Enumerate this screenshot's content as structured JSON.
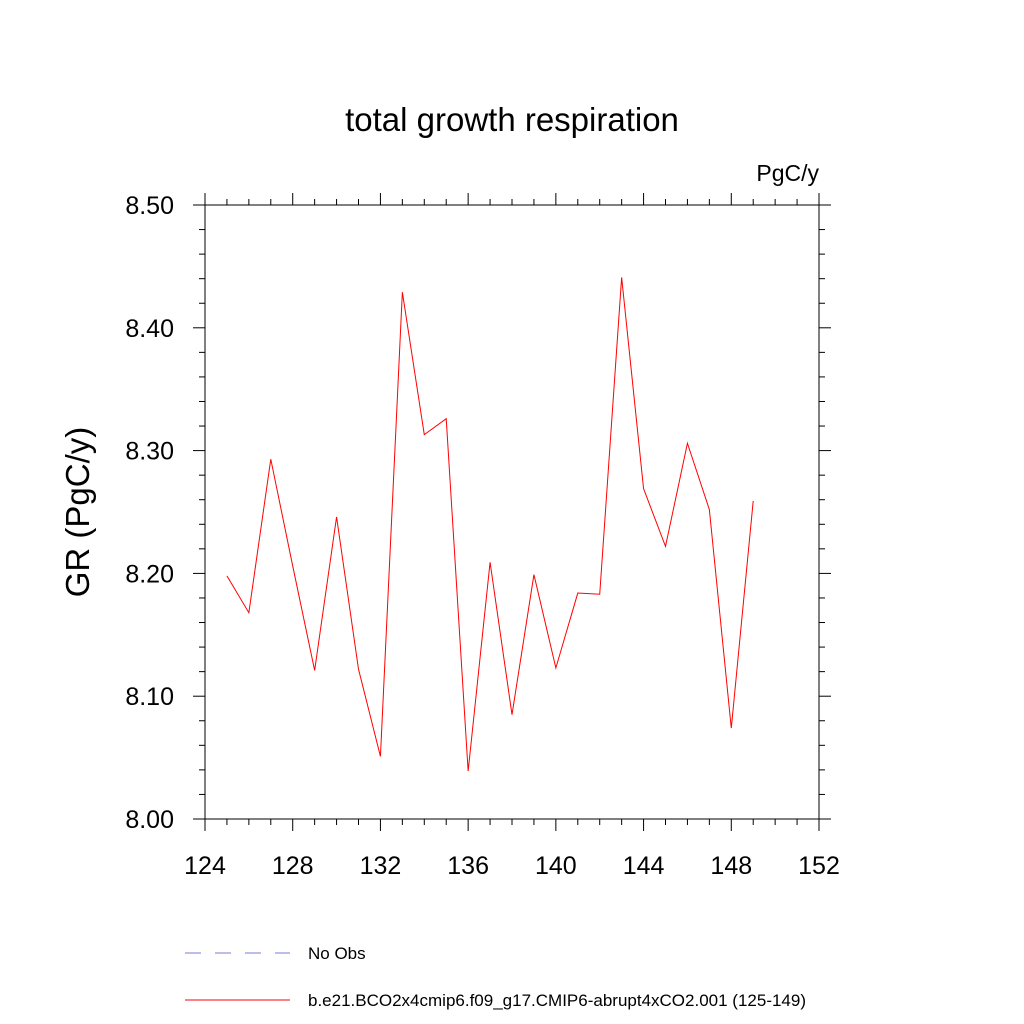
{
  "chart_data": {
    "type": "line",
    "title": "total growth respiration",
    "units": "PgC/y",
    "ylabel": "GR  (PgC/y)",
    "xlabel": "",
    "xlim": [
      124,
      152
    ],
    "ylim": [
      8.0,
      8.5
    ],
    "x_ticks": [
      124,
      128,
      132,
      136,
      140,
      144,
      148,
      152
    ],
    "x_tick_labels": [
      "124",
      "128",
      "132",
      "136",
      "140",
      "144",
      "148",
      "152"
    ],
    "y_ticks": [
      8.0,
      8.1,
      8.2,
      8.3,
      8.4,
      8.5
    ],
    "y_tick_labels": [
      "8.00",
      "8.10",
      "8.20",
      "8.30",
      "8.40",
      "8.50"
    ],
    "grid": false,
    "legend_placement": "bottom",
    "legend": [
      {
        "label": "No Obs",
        "color": "#7b7bd6",
        "style": "dashed"
      },
      {
        "label": "b.e21.BCO2x4cmip6.f09_g17.CMIP6-abrupt4xCO2.001 (125-149)",
        "color": "#ff0000",
        "style": "solid"
      }
    ],
    "series": [
      {
        "color": "#ff0000",
        "x": [
          125,
          126,
          127,
          128,
          129,
          130,
          131,
          132,
          133,
          134,
          135,
          136,
          137,
          138,
          139,
          140,
          141,
          142,
          143,
          144,
          145,
          146,
          147,
          148,
          149
        ],
        "values": [
          8.198,
          8.168,
          8.293,
          8.206,
          8.121,
          8.246,
          8.122,
          8.051,
          8.429,
          8.313,
          8.326,
          8.039,
          8.209,
          8.085,
          8.199,
          8.123,
          8.184,
          8.183,
          8.441,
          8.269,
          8.222,
          8.306,
          8.252,
          8.074,
          8.259
        ]
      }
    ]
  }
}
